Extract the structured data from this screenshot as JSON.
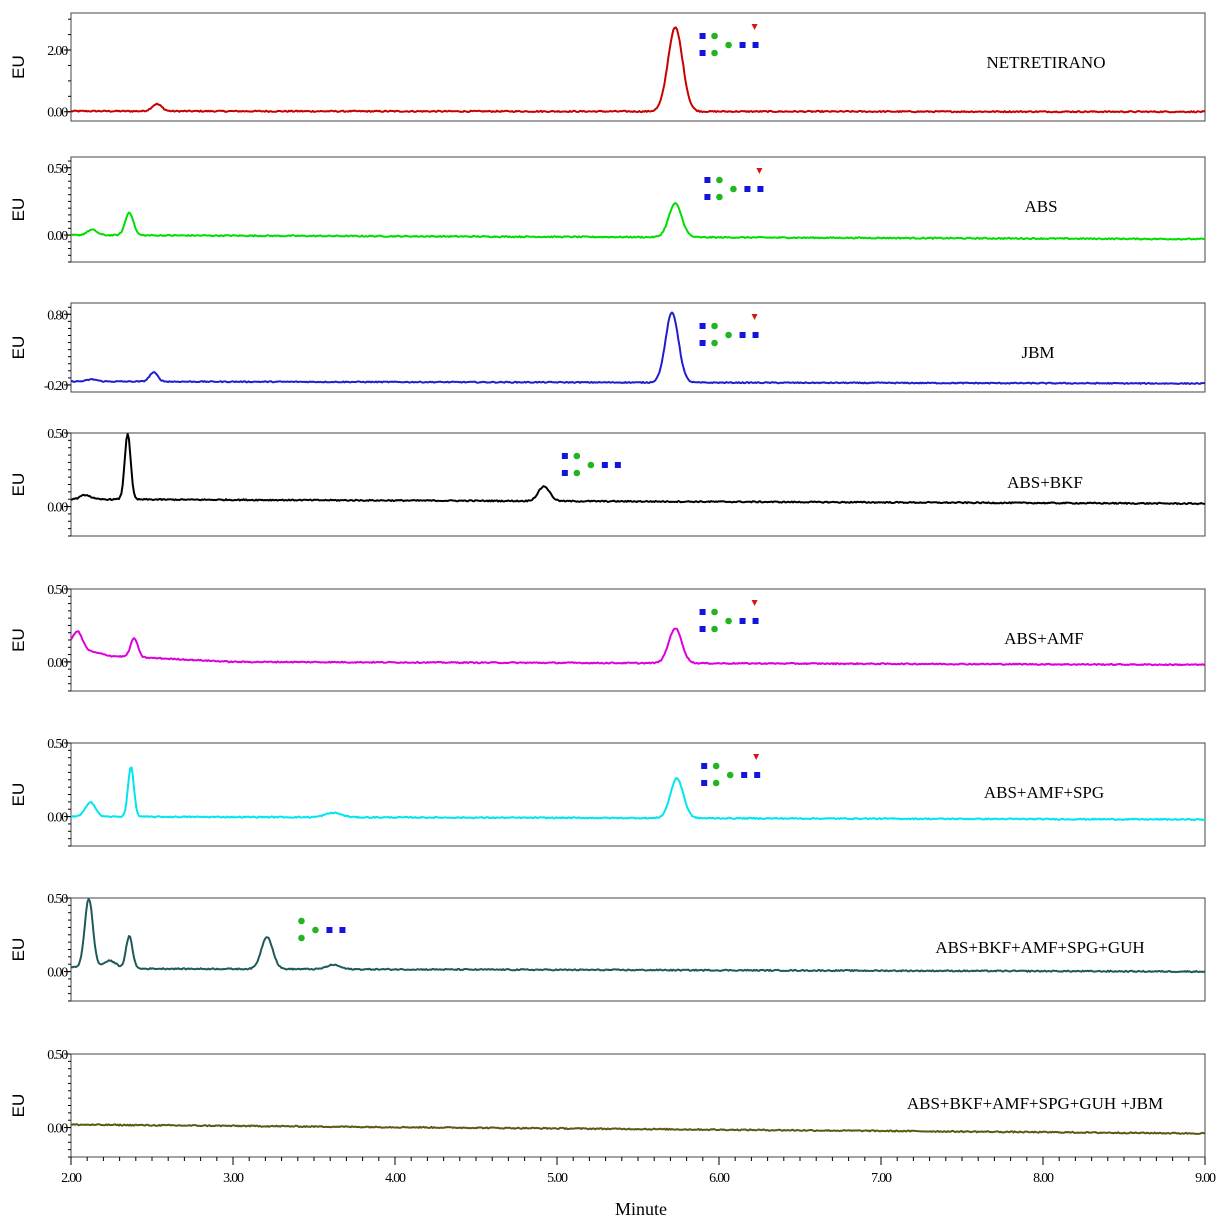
{
  "chart_data": {
    "type": "line",
    "xlabel": "Minute",
    "xlim": [
      2.0,
      9.0
    ],
    "x_ticks": [
      "2.00",
      "3.00",
      "4.00",
      "5.00",
      "6.00",
      "7.00",
      "8.00",
      "9.00"
    ],
    "panels": [
      {
        "name": "NETRETIRANO",
        "color": "#c80000",
        "ylabel": "EU",
        "ylim": [
          -0.3,
          3.2
        ],
        "y_ticks": [
          2.0,
          0.0
        ],
        "y_tick_labels": [
          "2.00",
          "0.00"
        ],
        "baseline": [
          [
            2.0,
            0.02
          ],
          [
            9.0,
            0.0
          ]
        ],
        "peaks": [
          {
            "x": 2.53,
            "h": 0.23,
            "w": 0.03
          },
          {
            "x": 5.73,
            "h": 2.72,
            "w": 0.045
          }
        ],
        "glycan": {
          "x": 5.88,
          "fucose": true
        },
        "series": [
          {
            "x": 2.0,
            "y": 0.02
          },
          {
            "x": 2.53,
            "y": 0.25
          },
          {
            "x": 5.6,
            "y": 0.03
          },
          {
            "x": 5.73,
            "y": 2.73
          },
          {
            "x": 5.86,
            "y": 0.05
          },
          {
            "x": 9.0,
            "y": 0.0
          }
        ]
      },
      {
        "name": "ABS",
        "color": "#00dd00",
        "ylabel": "EU",
        "ylim": [
          -0.2,
          0.58
        ],
        "y_ticks": [
          0.5,
          0.0
        ],
        "y_tick_labels": [
          "0.50",
          "0.00"
        ],
        "baseline": [
          [
            2.0,
            0.0
          ],
          [
            9.0,
            -0.03
          ]
        ],
        "peaks": [
          {
            "x": 2.13,
            "h": 0.04,
            "w": 0.03
          },
          {
            "x": 2.36,
            "h": 0.17,
            "w": 0.025
          },
          {
            "x": 5.73,
            "h": 0.25,
            "w": 0.04
          }
        ],
        "glycan": {
          "x": 5.91,
          "fucose": true
        },
        "series": [
          {
            "x": 2.0,
            "y": 0.0
          },
          {
            "x": 2.13,
            "y": 0.04
          },
          {
            "x": 2.36,
            "y": 0.17
          },
          {
            "x": 5.73,
            "y": 0.24
          },
          {
            "x": 9.0,
            "y": -0.03
          }
        ]
      },
      {
        "name": "JBM",
        "color": "#1f1fcf",
        "ylabel": "EU",
        "ylim": [
          -0.3,
          0.96
        ],
        "y_ticks": [
          0.8,
          -0.2
        ],
        "y_tick_labels": [
          "0.80",
          "-0.20"
        ],
        "baseline": [
          [
            2.0,
            -0.15
          ],
          [
            9.0,
            -0.18
          ]
        ],
        "peaks": [
          {
            "x": 2.13,
            "h": 0.03,
            "w": 0.03
          },
          {
            "x": 2.51,
            "h": 0.13,
            "w": 0.025
          },
          {
            "x": 5.71,
            "h": 0.99,
            "w": 0.04
          }
        ],
        "glycan": {
          "x": 5.88,
          "fucose": true
        },
        "series": [
          {
            "x": 2.0,
            "y": -0.15
          },
          {
            "x": 2.51,
            "y": -0.02
          },
          {
            "x": 5.71,
            "y": 0.84
          },
          {
            "x": 9.0,
            "y": -0.18
          }
        ]
      },
      {
        "name": "ABS+BKF",
        "color": "#000000",
        "ylabel": "EU",
        "ylim": [
          -0.2,
          0.5
        ],
        "y_ticks": [
          0.5,
          0.0
        ],
        "y_tick_labels": [
          "0.50",
          "0.00"
        ],
        "baseline": [
          [
            2.0,
            0.05
          ],
          [
            9.0,
            0.02
          ]
        ],
        "peaks": [
          {
            "x": 2.09,
            "h": 0.03,
            "w": 0.03
          },
          {
            "x": 2.35,
            "h": 0.45,
            "w": 0.018
          },
          {
            "x": 4.92,
            "h": 0.1,
            "w": 0.035
          }
        ],
        "glycan": {
          "x": 5.03,
          "fucose": false
        },
        "series": [
          {
            "x": 2.0,
            "y": 0.05
          },
          {
            "x": 2.35,
            "y": 0.5
          },
          {
            "x": 4.92,
            "y": 0.14
          },
          {
            "x": 9.0,
            "y": 0.02
          }
        ]
      },
      {
        "name": "ABS+AMF",
        "color": "#dd00dd",
        "ylabel": "EU",
        "ylim": [
          -0.2,
          0.5
        ],
        "y_ticks": [
          0.5,
          0.0
        ],
        "y_tick_labels": [
          "0.50",
          "0.00"
        ],
        "baseline": [
          [
            2.0,
            0.1
          ],
          [
            2.25,
            0.04
          ],
          [
            3.0,
            0.0
          ],
          [
            9.0,
            -0.02
          ]
        ],
        "peaks": [
          {
            "x": 2.04,
            "h": 0.12,
            "w": 0.03
          },
          {
            "x": 2.39,
            "h": 0.13,
            "w": 0.022
          },
          {
            "x": 5.73,
            "h": 0.24,
            "w": 0.04
          }
        ],
        "glycan": {
          "x": 5.88,
          "fucose": true
        },
        "series": [
          {
            "x": 2.0,
            "y": 0.2
          },
          {
            "x": 2.39,
            "y": 0.18
          },
          {
            "x": 5.73,
            "y": 0.24
          },
          {
            "x": 9.0,
            "y": -0.02
          }
        ]
      },
      {
        "name": "ABS+AMF+SPG",
        "color": "#00e5f0",
        "ylabel": "EU",
        "ylim": [
          -0.2,
          0.5
        ],
        "y_ticks": [
          0.5,
          0.0
        ],
        "y_tick_labels": [
          "0.50",
          "0.00"
        ],
        "baseline": [
          [
            2.0,
            0.0
          ],
          [
            9.0,
            -0.02
          ]
        ],
        "peaks": [
          {
            "x": 2.12,
            "h": 0.1,
            "w": 0.03
          },
          {
            "x": 2.37,
            "h": 0.34,
            "w": 0.018
          },
          {
            "x": 3.62,
            "h": 0.03,
            "w": 0.05
          },
          {
            "x": 5.74,
            "h": 0.27,
            "w": 0.04
          }
        ],
        "glycan": {
          "x": 5.89,
          "fucose": true
        },
        "series": [
          {
            "x": 2.0,
            "y": 0.0
          },
          {
            "x": 2.37,
            "y": 0.34
          },
          {
            "x": 5.74,
            "y": 0.27
          },
          {
            "x": 9.0,
            "y": -0.02
          }
        ]
      },
      {
        "name": "ABS+BKF+AMF+SPG+GUH",
        "color": "#1e5a5a",
        "ylabel": "EU",
        "ylim": [
          -0.2,
          0.5
        ],
        "y_ticks": [
          0.5,
          0.0
        ],
        "y_tick_labels": [
          "0.50",
          "0.00"
        ],
        "baseline": [
          [
            2.0,
            0.03
          ],
          [
            2.33,
            0.02
          ],
          [
            9.0,
            0.0
          ]
        ],
        "peaks": [
          {
            "x": 2.11,
            "h": 0.47,
            "w": 0.025
          },
          {
            "x": 2.24,
            "h": 0.05,
            "w": 0.04
          },
          {
            "x": 2.36,
            "h": 0.22,
            "w": 0.02
          },
          {
            "x": 3.21,
            "h": 0.22,
            "w": 0.035
          },
          {
            "x": 3.62,
            "h": 0.03,
            "w": 0.04
          }
        ],
        "glycan": {
          "x": 3.33,
          "fucose": false,
          "no_left_pair": true
        },
        "series": [
          {
            "x": 2.0,
            "y": 0.03
          },
          {
            "x": 2.11,
            "y": 0.5
          },
          {
            "x": 2.36,
            "y": 0.25
          },
          {
            "x": 3.21,
            "y": 0.24
          },
          {
            "x": 9.0,
            "y": 0.0
          }
        ]
      },
      {
        "name": "ABS+BKF+AMF+SPG+GUH +JBM",
        "color": "#5a5a14",
        "ylabel": "EU",
        "ylim": [
          -0.2,
          0.5
        ],
        "y_ticks": [
          0.5,
          0.0
        ],
        "y_tick_labels": [
          "0.50",
          "0.00"
        ],
        "baseline": [
          [
            2.0,
            0.02
          ],
          [
            9.0,
            -0.04
          ]
        ],
        "peaks": [],
        "glycan": null,
        "series": [
          {
            "x": 2.0,
            "y": 0.02
          },
          {
            "x": 9.0,
            "y": -0.04
          }
        ]
      }
    ]
  }
}
